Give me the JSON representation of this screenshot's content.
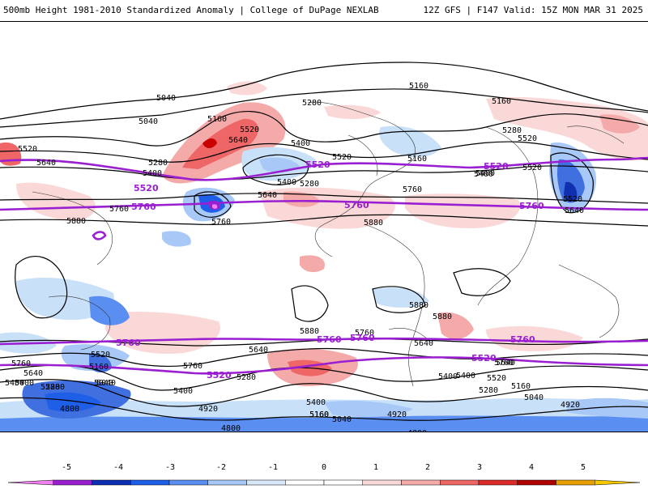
{
  "header": {
    "title": "500mb Height 1981-2010 Standardized Anomaly | College of DuPage NEXLAB",
    "run_info": "12Z GFS | F147 Valid: 15Z MON MAR 31 2025"
  },
  "colors": {
    "contour": "#000000",
    "highlight_contour": "#9a1fd0",
    "anom_pos_1": "#f8cccc",
    "anom_pos_2": "#ef6e6e",
    "anom_pos_3": "#c80000",
    "anom_neg_1": "#c8e0f8",
    "anom_neg_2": "#4070e0",
    "anom_neg_3": "#1030b0",
    "anom_neg_4": "#e060e0"
  },
  "map": {
    "contour_labels": [
      "5160",
      "5040",
      "5040",
      "5160",
      "5280",
      "5520",
      "5640",
      "5400",
      "5520",
      "5280",
      "5400",
      "5160",
      "5520",
      "5640",
      "5400",
      "5520",
      "5280",
      "5400",
      "5880",
      "5760",
      "5640",
      "5760",
      "5160",
      "5280",
      "5400",
      "5520",
      "5640",
      "5760",
      "5880",
      "5520",
      "5880",
      "5880",
      "5760",
      "5640",
      "5760",
      "5640",
      "5400",
      "5280",
      "5160",
      "5040",
      "4920",
      "4800",
      "5400",
      "4920",
      "5160",
      "5040",
      "4800",
      "5520",
      "5640",
      "5400",
      "5280",
      "5160",
      "5040",
      "4920",
      "5760",
      "5520",
      "5400",
      "5160",
      "5280",
      "5400",
      "5280",
      "5040",
      "5400",
      "4800",
      "5640",
      "5760",
      "5880"
    ],
    "highlight_labels": [
      "5520",
      "5760",
      "5520",
      "5760",
      "5520",
      "5760",
      "5760",
      "5760",
      "5520",
      "5760",
      "5520",
      "5760"
    ]
  },
  "colorbar": {
    "ticks": [
      "-5",
      "-4",
      "-3",
      "-2",
      "-1",
      "0",
      "1",
      "2",
      "3",
      "4",
      "5"
    ],
    "bins": [
      {
        "color": "#f080f0"
      },
      {
        "color": "#9a1fd0"
      },
      {
        "color": "#0b2fb0"
      },
      {
        "color": "#1f5fe8"
      },
      {
        "color": "#5a8ef0"
      },
      {
        "color": "#a8c8f8"
      },
      {
        "color": "#d8e8fb"
      },
      {
        "color": "#ffffff"
      },
      {
        "color": "#ffffff"
      },
      {
        "color": "#fbd8d8"
      },
      {
        "color": "#f5aaaa"
      },
      {
        "color": "#ee6666"
      },
      {
        "color": "#dd2a2a"
      },
      {
        "color": "#b00000"
      },
      {
        "color": "#e8a000"
      },
      {
        "color": "#f5c800"
      }
    ]
  }
}
